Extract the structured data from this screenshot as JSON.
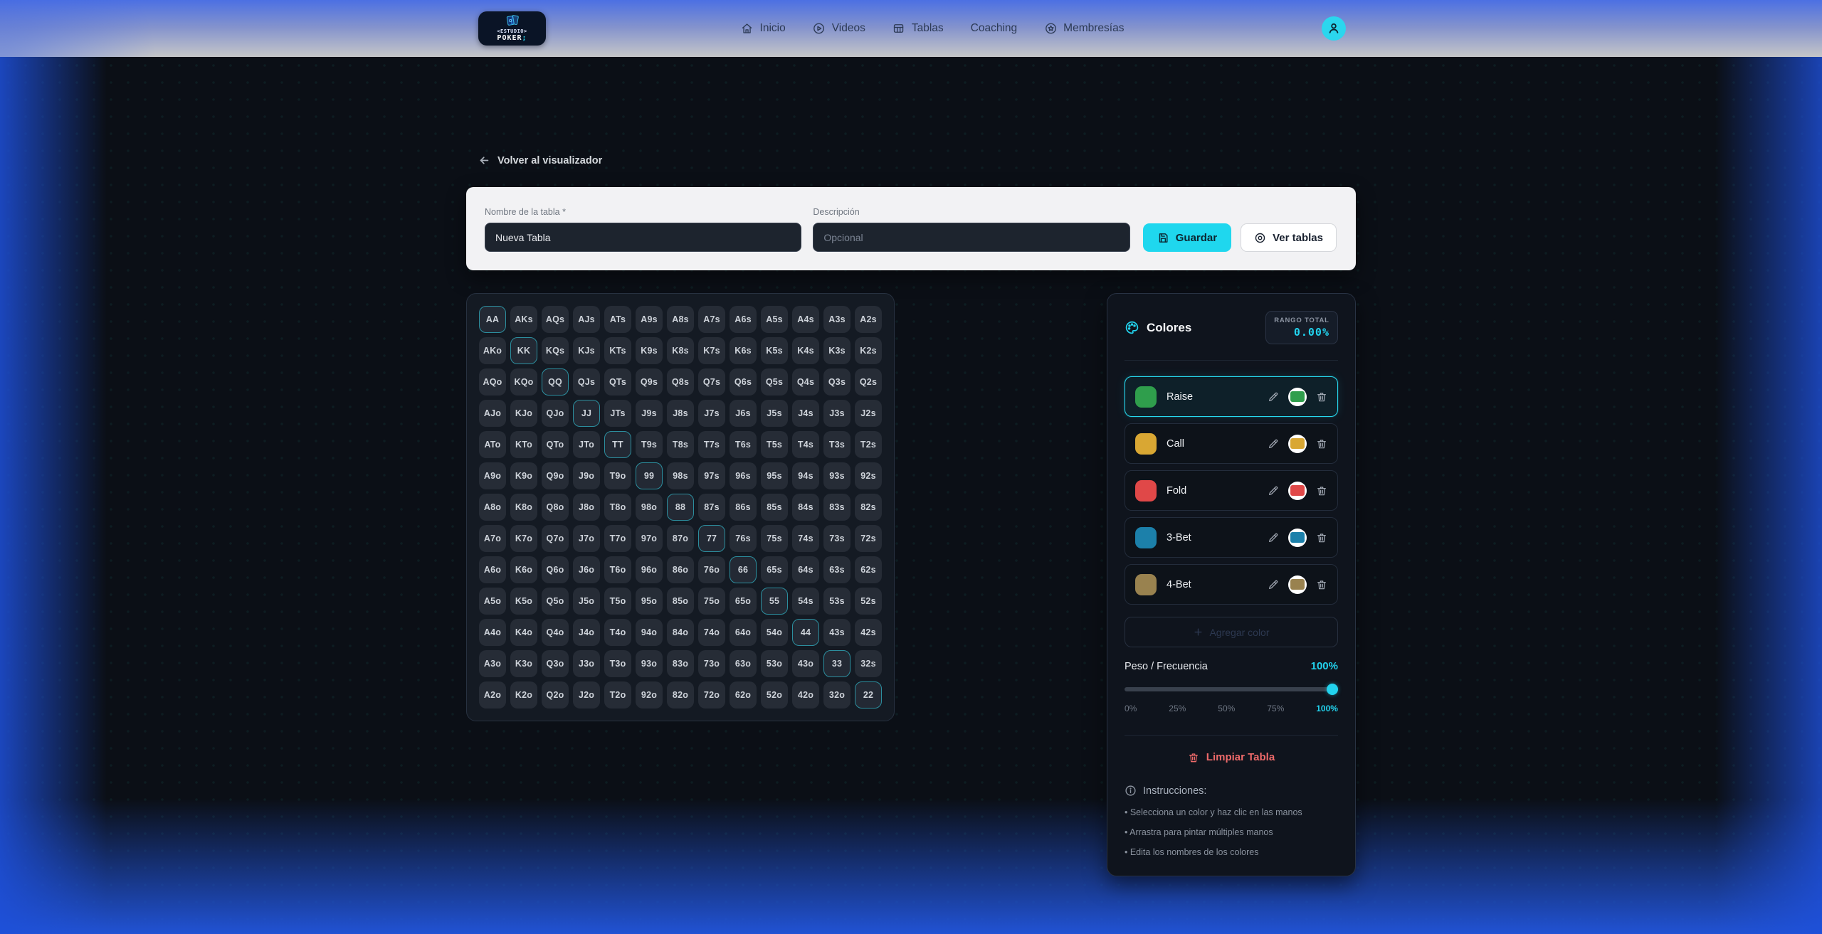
{
  "nav": {
    "logo": {
      "top": "<ESTUDIO>",
      "bottom": "POKER",
      "cursor": ";"
    },
    "items": [
      {
        "label": "Inicio",
        "icon": "home"
      },
      {
        "label": "Videos",
        "icon": "play-circle"
      },
      {
        "label": "Tablas",
        "icon": "table"
      },
      {
        "label": "Coaching",
        "icon": null
      },
      {
        "label": "Membresías",
        "icon": "star-circle"
      }
    ]
  },
  "back_link": "Volver al visualizador",
  "form": {
    "name_label": "Nombre de la tabla *",
    "name_value": "Nueva Tabla",
    "description_label": "Descripción",
    "description_placeholder": "Opcional",
    "save_label": "Guardar",
    "view_tables_label": "Ver tablas"
  },
  "grid": {
    "rows": [
      [
        "AA",
        "AKs",
        "AQs",
        "AJs",
        "ATs",
        "A9s",
        "A8s",
        "A7s",
        "A6s",
        "A5s",
        "A4s",
        "A3s",
        "A2s"
      ],
      [
        "AKo",
        "KK",
        "KQs",
        "KJs",
        "KTs",
        "K9s",
        "K8s",
        "K7s",
        "K6s",
        "K5s",
        "K4s",
        "K3s",
        "K2s"
      ],
      [
        "AQo",
        "KQo",
        "QQ",
        "QJs",
        "QTs",
        "Q9s",
        "Q8s",
        "Q7s",
        "Q6s",
        "Q5s",
        "Q4s",
        "Q3s",
        "Q2s"
      ],
      [
        "AJo",
        "KJo",
        "QJo",
        "JJ",
        "JTs",
        "J9s",
        "J8s",
        "J7s",
        "J6s",
        "J5s",
        "J4s",
        "J3s",
        "J2s"
      ],
      [
        "ATo",
        "KTo",
        "QTo",
        "JTo",
        "TT",
        "T9s",
        "T8s",
        "T7s",
        "T6s",
        "T5s",
        "T4s",
        "T3s",
        "T2s"
      ],
      [
        "A9o",
        "K9o",
        "Q9o",
        "J9o",
        "T9o",
        "99",
        "98s",
        "97s",
        "96s",
        "95s",
        "94s",
        "93s",
        "92s"
      ],
      [
        "A8o",
        "K8o",
        "Q8o",
        "J8o",
        "T8o",
        "98o",
        "88",
        "87s",
        "86s",
        "85s",
        "84s",
        "83s",
        "82s"
      ],
      [
        "A7o",
        "K7o",
        "Q7o",
        "J7o",
        "T7o",
        "97o",
        "87o",
        "77",
        "76s",
        "75s",
        "74s",
        "73s",
        "72s"
      ],
      [
        "A6o",
        "K6o",
        "Q6o",
        "J6o",
        "T6o",
        "96o",
        "86o",
        "76o",
        "66",
        "65s",
        "64s",
        "63s",
        "62s"
      ],
      [
        "A5o",
        "K5o",
        "Q5o",
        "J5o",
        "T5o",
        "95o",
        "85o",
        "75o",
        "65o",
        "55",
        "54s",
        "53s",
        "52s"
      ],
      [
        "A4o",
        "K4o",
        "Q4o",
        "J4o",
        "T4o",
        "94o",
        "84o",
        "74o",
        "64o",
        "54o",
        "44",
        "43s",
        "42s"
      ],
      [
        "A3o",
        "K3o",
        "Q3o",
        "J3o",
        "T3o",
        "93o",
        "83o",
        "73o",
        "63o",
        "53o",
        "43o",
        "33",
        "32s"
      ],
      [
        "A2o",
        "K2o",
        "Q2o",
        "J2o",
        "T2o",
        "92o",
        "82o",
        "72o",
        "62o",
        "52o",
        "42o",
        "32o",
        "22"
      ]
    ]
  },
  "colors_panel": {
    "title": "Colores",
    "range_total_label": "RANGO TOTAL",
    "range_total_value": "0.00%",
    "colors": [
      {
        "name": "Raise",
        "color": "#2f9e4c",
        "selected": true
      },
      {
        "name": "Call",
        "color": "#d9a733",
        "selected": false
      },
      {
        "name": "Fold",
        "color": "#e04848",
        "selected": false
      },
      {
        "name": "3-Bet",
        "color": "#1c80aa",
        "selected": false
      },
      {
        "name": "4-Bet",
        "color": "#99824f",
        "selected": false
      }
    ],
    "add_color_label": "Agregar color",
    "weight_label": "Peso / Frecuencia",
    "weight_value": "100%",
    "slider_percent": 100,
    "slider_ticks": [
      "0%",
      "25%",
      "50%",
      "75%",
      "100%"
    ],
    "clear_label": "Limpiar Tabla",
    "instructions_title": "Instrucciones:",
    "instructions": [
      "Selecciona un color y haz clic en las manos",
      "Arrastra para pintar múltiples manos",
      "Edita los nombres de los colores"
    ]
  },
  "theme": {
    "accent_cyan": "#22d3ee",
    "danger_red": "#ee6a6a",
    "pair_border_teal": "#2c8e9e",
    "nav_gradient_top": "#4c70e3",
    "nav_gradient_bottom": "#c5c6c8"
  }
}
